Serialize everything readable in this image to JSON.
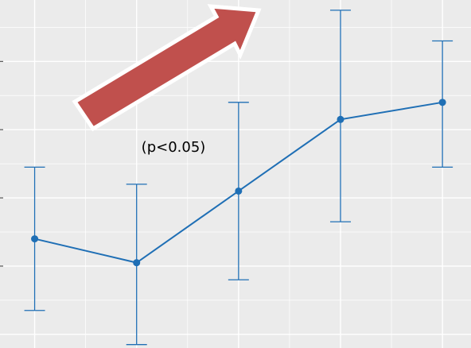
{
  "chart_data": {
    "type": "line",
    "title": "",
    "xlabel": "",
    "ylabel": "",
    "x": [
      1,
      2,
      3,
      4,
      5
    ],
    "series": [
      {
        "values": [
          68,
          61,
          82,
          103,
          108
        ],
        "error_low": [
          47,
          37,
          56,
          73,
          89
        ],
        "error_high": [
          89,
          84,
          108,
          135,
          126
        ]
      }
    ],
    "xlim": [
      0.66,
      5.28
    ],
    "ylim": [
      36,
      138
    ],
    "grid": true,
    "legend": "none",
    "annotation": {
      "text": "(p<0.05)"
    },
    "arrow": {
      "direction": "up-right"
    },
    "colors": {
      "panel_background": "#ebebeb",
      "grid_line": "#ffffff",
      "series_line": "#1f6fb5",
      "arrow_fill": "#c0504d",
      "arrow_border": "#ffffff",
      "annotation_text": "#000000",
      "axis_tick": "#333333"
    }
  }
}
